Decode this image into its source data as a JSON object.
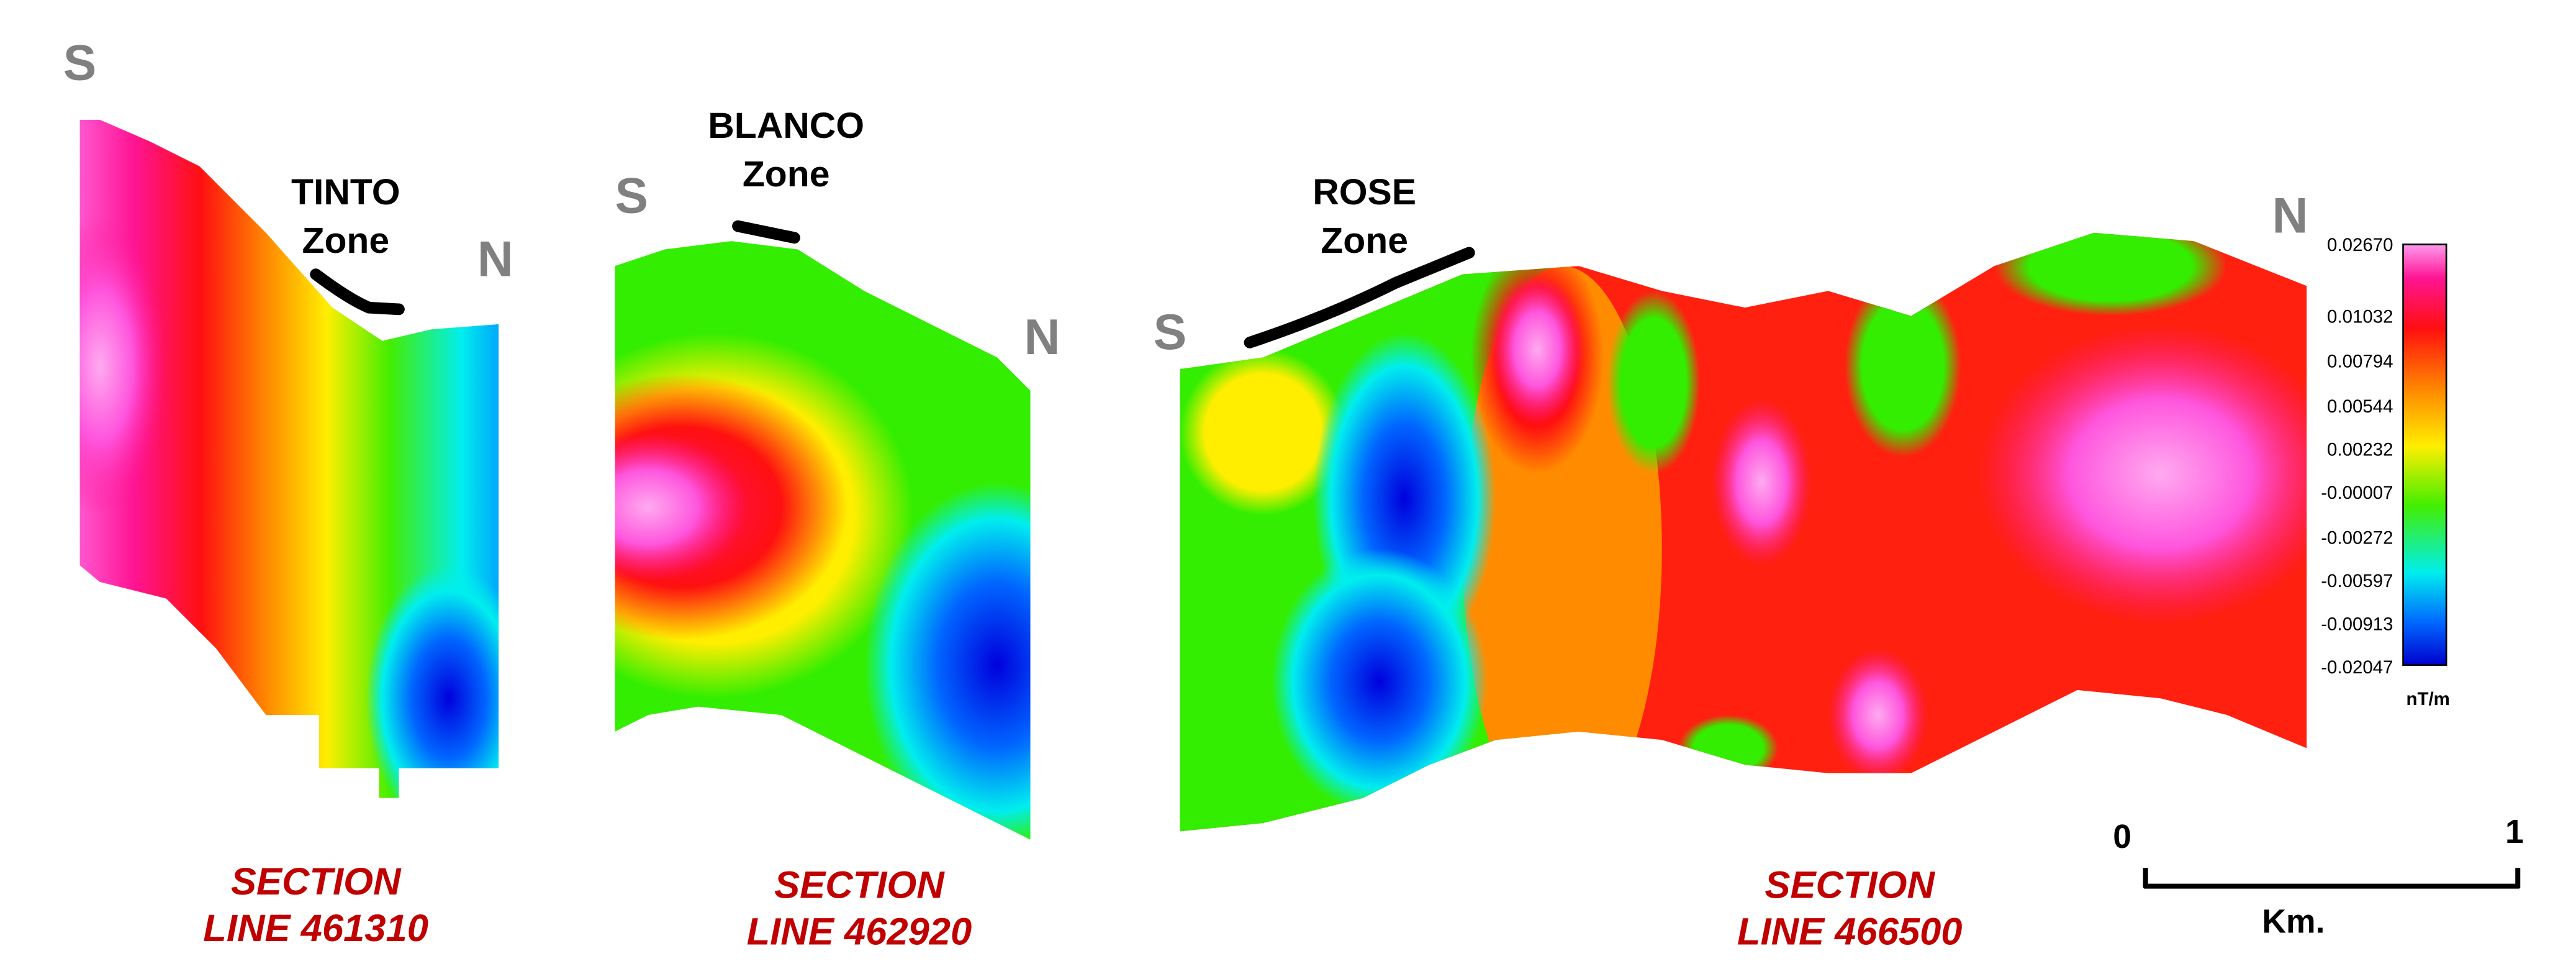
{
  "sections": [
    {
      "south": "S",
      "north": "N",
      "zone": [
        "TINTO",
        "Zone"
      ],
      "label": [
        "SECTION",
        "LINE 461310"
      ]
    },
    {
      "south": "S",
      "north": "N",
      "zone": [
        "BLANCO",
        "Zone"
      ],
      "label": [
        "SECTION",
        "LINE 462920"
      ]
    },
    {
      "south": "S",
      "north": "N",
      "zone": [
        "ROSE",
        "Zone"
      ],
      "label": [
        "SECTION",
        "LINE 466500"
      ]
    }
  ],
  "colorbar": {
    "labels": [
      "0.02670",
      "0.01032",
      "0.00794",
      "0.00544",
      "0.00232",
      "-0.00007",
      "-0.00272",
      "-0.00597",
      "-0.00913",
      "-0.02047"
    ],
    "unit": "nT/m"
  },
  "scale_bar": {
    "start": "0",
    "end": "1",
    "unit": "Km."
  }
}
